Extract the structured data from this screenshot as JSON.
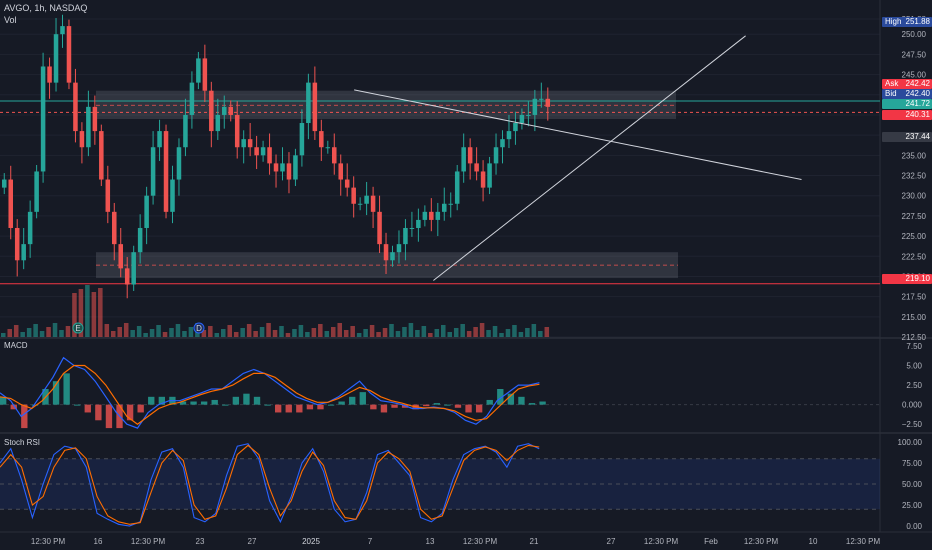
{
  "header": {
    "symbol_line": "AVGO, 1h, NASDAQ",
    "volume_label": "Vol"
  },
  "panes": {
    "macd_label": "MACD",
    "stoch_label": "Stoch RSI"
  },
  "colors": {
    "bg": "#161a25",
    "up": "#26a69a",
    "down": "#ef5350",
    "macd": "#2962ff",
    "signal": "#ff6d00",
    "zone": "#787b86",
    "line": "#d1d4dc",
    "support": "#f23645",
    "blue_badge": "#2a4a9c"
  },
  "price_axis": {
    "ticks": [
      "251.88",
      "250.00",
      "247.50",
      "245.00",
      "242.50",
      "240.00",
      "237.50",
      "235.00",
      "232.50",
      "230.00",
      "227.50",
      "225.00",
      "222.50",
      "220.00",
      "217.50",
      "215.00",
      "212.50"
    ],
    "values": [
      251.88,
      250,
      247.5,
      245,
      242.5,
      240,
      237.5,
      235,
      232.5,
      230,
      227.5,
      225,
      222.5,
      220,
      217.5,
      215,
      212.5
    ]
  },
  "macd_axis": {
    "ticks": [
      "7.50",
      "5.00",
      "2.50",
      "0.000",
      "−2.50"
    ],
    "values": [
      7.5,
      5,
      2.5,
      0,
      -2.5
    ]
  },
  "stoch_axis": {
    "ticks": [
      "100.00",
      "75.00",
      "50.00",
      "25.00",
      "0.00"
    ],
    "values": [
      100,
      75,
      50,
      25,
      0
    ]
  },
  "time_axis": [
    "12:30 PM",
    "16",
    "12:30 PM",
    "23",
    "27",
    "2025",
    "7",
    "13",
    "12:30 PM",
    "21",
    "27",
    "12:30 PM",
    "Feb",
    "12:30 PM",
    "10",
    "12:30 PM"
  ],
  "badges": {
    "high": {
      "key": "High",
      "value": "251.88"
    },
    "ask": {
      "key": "Ask",
      "value": "242.42"
    },
    "bid": {
      "key": "Bid",
      "value": "242.40"
    },
    "last": "241.72",
    "level_red": "240.31",
    "level_grey": "237.44",
    "support": "219.10"
  },
  "event_markers": [
    "E",
    "D"
  ],
  "chart_data": {
    "type": "candlestick",
    "symbol": "AVGO",
    "interval": "1h",
    "exchange": "NASDAQ",
    "ylim": [
      212.5,
      252.5
    ],
    "resistance_zone": [
      239.5,
      243.0
    ],
    "support_zone": [
      219.8,
      223.0
    ],
    "support_line": 219.1,
    "descending_trendline": [
      [
        0.38,
        243.1
      ],
      [
        0.86,
        232.0
      ]
    ],
    "ascending_trendline": [
      [
        0.465,
        219.5
      ],
      [
        0.8,
        249.8
      ]
    ],
    "close_series": [
      232,
      226,
      222,
      224,
      228,
      233,
      246,
      244,
      250,
      251,
      244,
      238,
      236,
      241,
      238,
      232,
      228,
      224,
      221,
      219,
      223,
      226,
      230,
      236,
      238,
      228,
      232,
      236,
      240,
      244,
      247,
      243,
      238,
      240,
      241,
      240,
      236,
      237,
      236,
      235,
      236,
      234,
      233,
      234,
      232,
      235,
      239,
      244,
      238,
      236,
      236,
      234,
      232,
      231,
      229,
      229,
      230,
      228,
      224,
      222,
      223,
      224,
      226,
      226,
      227,
      228,
      227,
      228,
      229,
      229,
      233,
      236,
      234,
      233,
      231,
      234,
      236,
      237,
      238,
      239,
      240,
      240,
      242,
      242,
      241
    ],
    "macd_line": [
      1.5,
      0.5,
      -1.5,
      -0.5,
      1.5,
      3.5,
      6,
      5,
      4.5,
      3,
      1,
      -1,
      -2.5,
      -3,
      -1,
      0,
      0.5,
      0.5,
      1,
      1.5,
      2,
      2,
      3,
      4,
      4.5,
      4,
      3,
      2,
      1,
      0.5,
      0,
      0.3,
      1,
      2,
      3,
      1.5,
      0.5,
      0.3,
      0,
      -0.5,
      -0.5,
      -0.3,
      -0.5,
      -1,
      -2,
      -2.5,
      -1.5,
      0.5,
      1.5,
      2.5,
      2.5,
      2.8
    ],
    "signal_line": [
      1,
      0.8,
      0,
      -0.5,
      0.5,
      2,
      4,
      5,
      5,
      4,
      2.5,
      0.5,
      -1.5,
      -2.5,
      -1.5,
      -0.5,
      0,
      0.3,
      0.8,
      1.3,
      1.7,
      2,
      2.5,
      3.3,
      4,
      4,
      3.5,
      2.5,
      1.5,
      0.8,
      0.3,
      0.3,
      0.8,
      1.5,
      2.2,
      1.8,
      1,
      0.5,
      0.2,
      -0.2,
      -0.4,
      -0.4,
      -0.5,
      -0.8,
      -1.5,
      -2,
      -1.8,
      -0.5,
      0.8,
      2,
      2.4,
      2.6
    ],
    "stoch_k": [
      75,
      92,
      55,
      10,
      50,
      85,
      95,
      92,
      70,
      15,
      8,
      2,
      0,
      5,
      55,
      88,
      92,
      70,
      10,
      5,
      15,
      60,
      95,
      98,
      80,
      30,
      5,
      35,
      75,
      92,
      65,
      20,
      5,
      8,
      40,
      85,
      90,
      75,
      60,
      10,
      5,
      15,
      55,
      85,
      92,
      95,
      88,
      70,
      95,
      98,
      92
    ],
    "stoch_d": [
      70,
      85,
      70,
      25,
      35,
      70,
      90,
      93,
      80,
      35,
      12,
      5,
      2,
      4,
      40,
      75,
      90,
      78,
      25,
      8,
      12,
      45,
      85,
      96,
      85,
      45,
      12,
      30,
      65,
      88,
      72,
      30,
      10,
      8,
      30,
      75,
      88,
      80,
      65,
      20,
      8,
      12,
      45,
      78,
      90,
      94,
      90,
      78,
      90,
      96,
      94
    ]
  }
}
